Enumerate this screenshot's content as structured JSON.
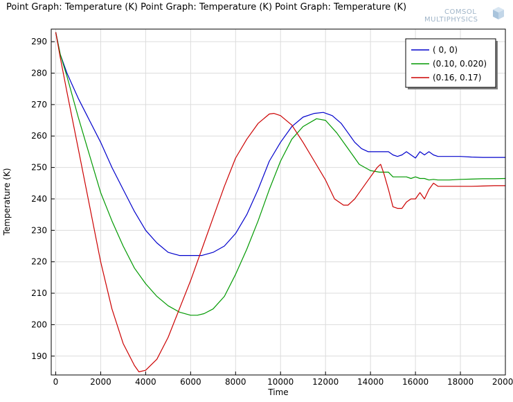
{
  "brand": {
    "logo_line1": "COMSOL",
    "logo_line2": "MULTIPHYSICS"
  },
  "chart_data": {
    "type": "line",
    "title": "Point Graph: Temperature (K)  Point Graph: Temperature (K)  Point Graph: Temperature (K)",
    "xlabel": "Time",
    "ylabel": "Temperature (K)",
    "xlim": [
      -200,
      20000
    ],
    "ylim": [
      184,
      294
    ],
    "xticks": [
      0,
      2000,
      4000,
      6000,
      8000,
      10000,
      12000,
      14000,
      16000,
      18000,
      20000
    ],
    "yticks": [
      190,
      200,
      210,
      220,
      230,
      240,
      250,
      260,
      270,
      280,
      290
    ],
    "grid": true,
    "legend_position": "top-right",
    "series": [
      {
        "name": "( 0,  0)",
        "color": "#0000cc",
        "x": [
          0,
          200,
          500,
          1000,
          1500,
          2000,
          2500,
          3000,
          3500,
          4000,
          4500,
          5000,
          5500,
          6000,
          6500,
          7000,
          7500,
          8000,
          8500,
          9000,
          9500,
          10000,
          10500,
          11000,
          11500,
          11900,
          12300,
          12700,
          13000,
          13300,
          13600,
          13900,
          14200,
          14500,
          14800,
          15000,
          15200,
          15400,
          15600,
          15800,
          16000,
          16200,
          16400,
          16600,
          16800,
          17000,
          17500,
          18000,
          18500,
          19000,
          19500,
          20000
        ],
        "y": [
          293,
          286,
          280,
          272,
          265,
          258,
          250,
          243,
          236,
          230,
          226,
          223,
          222,
          222,
          222,
          223,
          225,
          229,
          235,
          243,
          252,
          258,
          263,
          266,
          267.2,
          267.5,
          266.5,
          264,
          261,
          258,
          256,
          255,
          255,
          255,
          255,
          254,
          253.5,
          254,
          255,
          254,
          253,
          255,
          254,
          255,
          254,
          253.5,
          253.5,
          253.5,
          253.3,
          253.2,
          253.2,
          253.2
        ]
      },
      {
        "name": "(0.10, 0.020)",
        "color": "#009900",
        "x": [
          0,
          200,
          500,
          1000,
          1500,
          2000,
          2500,
          3000,
          3500,
          4000,
          4500,
          5000,
          5500,
          6000,
          6300,
          6600,
          7000,
          7500,
          8000,
          8500,
          9000,
          9500,
          10000,
          10500,
          11000,
          11600,
          12000,
          12500,
          13000,
          13500,
          14000,
          14400,
          14800,
          15000,
          15200,
          15400,
          15600,
          15800,
          16000,
          16200,
          16400,
          16600,
          16800,
          17000,
          17500,
          18000,
          18500,
          19000,
          19500,
          20000
        ],
        "y": [
          293,
          286,
          279,
          266,
          254,
          242,
          233,
          225,
          218,
          213,
          209,
          206,
          204,
          203,
          203,
          203.5,
          205,
          209,
          216,
          224,
          233,
          243,
          252,
          259,
          263,
          265.5,
          265,
          261,
          256,
          251,
          249,
          248.5,
          248.5,
          247,
          247,
          247,
          247,
          246.5,
          247,
          246.5,
          246.5,
          246,
          246.2,
          246,
          246,
          246.2,
          246.3,
          246.4,
          246.4,
          246.5
        ]
      },
      {
        "name": "(0.16, 0.17)",
        "color": "#cc0000",
        "x": [
          0,
          200,
          500,
          1000,
          1500,
          2000,
          2500,
          3000,
          3500,
          3700,
          4000,
          4500,
          5000,
          5500,
          6000,
          6500,
          7000,
          7500,
          8000,
          8500,
          9000,
          9500,
          9700,
          10000,
          10500,
          11000,
          11500,
          12000,
          12400,
          12800,
          13000,
          13300,
          13700,
          14000,
          14300,
          14450,
          14600,
          14800,
          15000,
          15200,
          15400,
          15600,
          15800,
          16000,
          16100,
          16200,
          16400,
          16600,
          16800,
          17000,
          17500,
          18000,
          18500,
          19000,
          19500,
          20000
        ],
        "y": [
          293,
          285,
          274,
          256,
          238,
          220,
          205,
          194,
          187,
          185,
          185.5,
          189,
          196,
          205,
          214,
          224,
          234,
          244,
          253,
          259,
          264,
          267,
          267.2,
          266.5,
          263.5,
          258,
          252,
          246,
          240,
          238,
          238,
          240,
          244,
          247,
          250,
          251,
          248,
          243,
          237.5,
          237,
          237,
          239,
          240,
          240,
          241,
          242,
          240,
          243,
          245,
          244,
          244,
          244,
          244,
          244.1,
          244.2,
          244.2
        ]
      }
    ]
  }
}
